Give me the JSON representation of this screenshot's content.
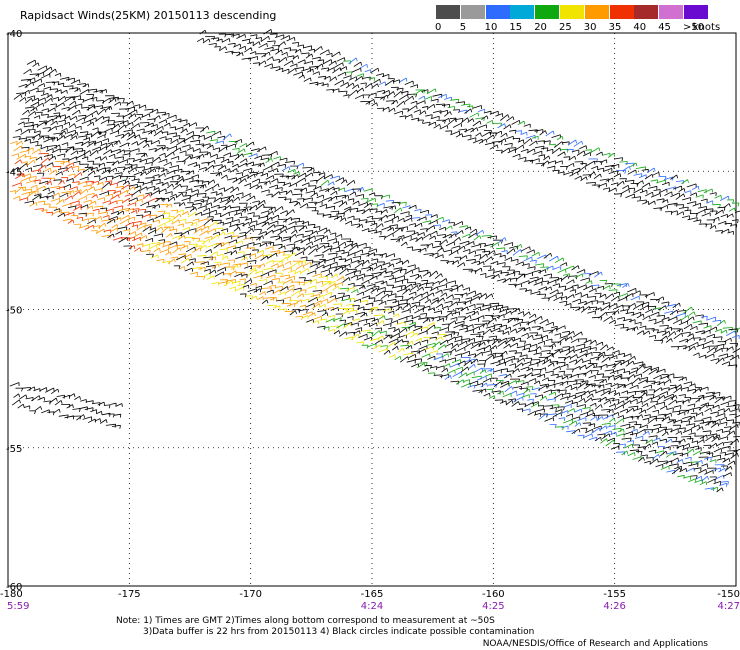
{
  "title": "Rapidsact Winds(25KM) 20150113 descending",
  "legend": {
    "unit": "knots",
    "items": [
      {
        "label": "0",
        "color": "#4d4d4d"
      },
      {
        "label": "5",
        "color": "#9a9a9a"
      },
      {
        "label": "10",
        "color": "#2e6bff"
      },
      {
        "label": "15",
        "color": "#00a9d8"
      },
      {
        "label": "20",
        "color": "#10a810"
      },
      {
        "label": "25",
        "color": "#f0e400"
      },
      {
        "label": "30",
        "color": "#ff9a00"
      },
      {
        "label": "35",
        "color": "#f03000"
      },
      {
        "label": "40",
        "color": "#a52a2a"
      },
      {
        "label": "45",
        "color": "#d070d0"
      },
      {
        "label": ">50",
        "color": "#6a0ad0"
      }
    ]
  },
  "map": {
    "lon_range": [
      -180,
      -150
    ],
    "lat_range": [
      -40,
      -60
    ],
    "lon_ticks": [
      -180,
      -175,
      -170,
      -165,
      -160,
      -155,
      -150
    ],
    "lat_ticks": [
      -40,
      -45,
      -50,
      -55,
      -60
    ],
    "lon_tick_labels": [
      "-180",
      "-175",
      "-170",
      "-165",
      "-160",
      "-155",
      "-150"
    ],
    "lat_tick_labels": [
      "-40",
      "-45",
      "-50",
      "-55",
      "-60"
    ],
    "times": [
      {
        "lon": -180,
        "label": "5:59"
      },
      {
        "lon": -165,
        "label": "4:24"
      },
      {
        "lon": -160,
        "label": "4:25"
      },
      {
        "lon": -155,
        "label": "4:26"
      },
      {
        "lon": -150,
        "label": "4:27"
      }
    ],
    "swaths": [
      {
        "name": "north-swath",
        "from": [
          -179.5,
          -41.8
        ],
        "to": [
          -150,
          -51.5
        ],
        "width_deg": 1.3,
        "color_mix": [
          "#000000",
          "#10a810",
          "#2e6bff"
        ]
      },
      {
        "name": "mid-swath",
        "from": [
          -172,
          -39.8
        ],
        "to": [
          -150,
          -46.8
        ],
        "width_deg": 1.1,
        "color_mix": [
          "#000000",
          "#10a810",
          "#2e6bff"
        ]
      },
      {
        "name": "main-swath",
        "from": [
          -180,
          -44.2
        ],
        "to": [
          -150,
          -55.2
        ],
        "width_deg": 3.2,
        "color_mix": [
          "#000000",
          "#f0e400",
          "#ff9a00",
          "#f03000",
          "#10a810",
          "#2e6bff"
        ]
      },
      {
        "name": "west-fragment",
        "from": [
          -180,
          -53.1
        ],
        "to": [
          -175.5,
          -53.9
        ],
        "width_deg": 0.7,
        "color_mix": [
          "#000000"
        ]
      }
    ]
  },
  "notes": [
    "Note: 1) Times are GMT 2)Times along bottom correspond to measurement at ~50S",
    "3)Data buffer is 22 hrs from 20150113 4) Black circles indicate possible contamination"
  ],
  "credit": "NOAA/NESDIS/Office of Research and Applications"
}
